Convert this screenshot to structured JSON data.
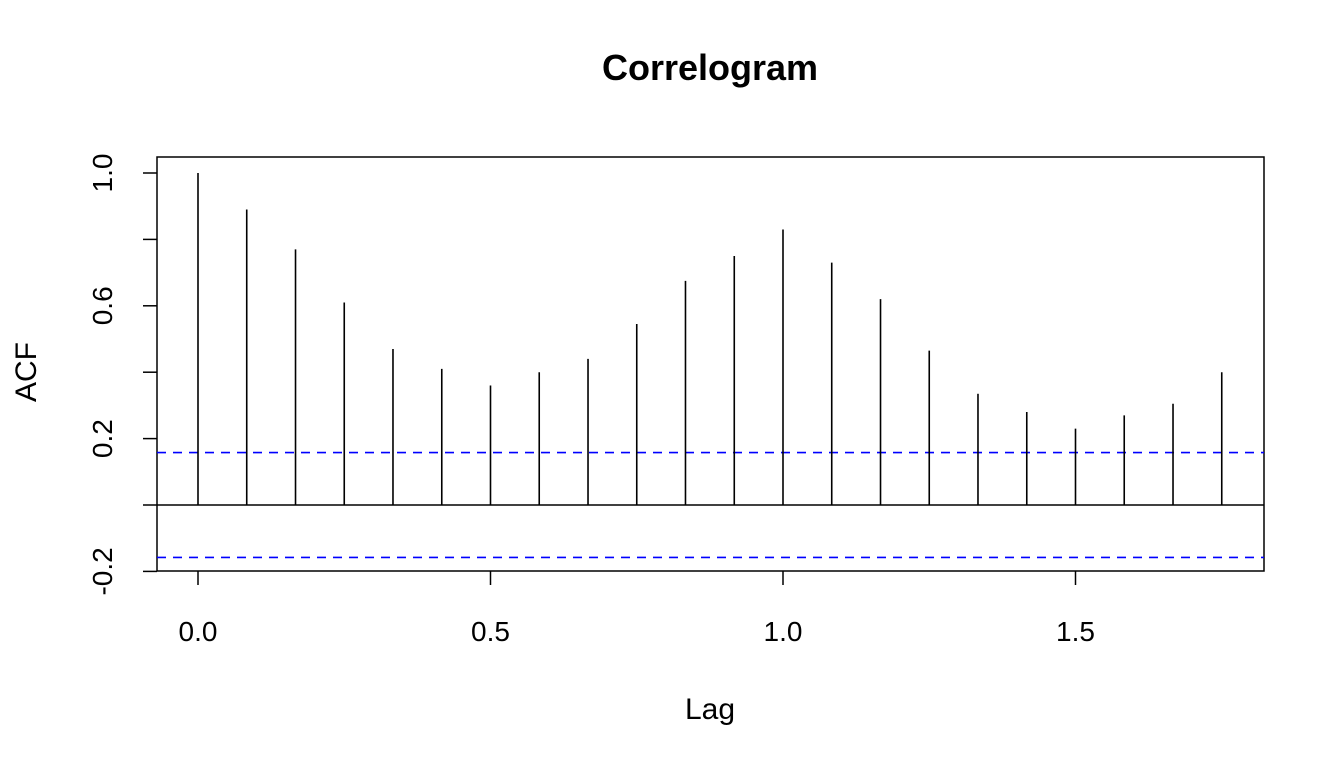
{
  "chart_data": {
    "type": "bar",
    "title": "Correlogram",
    "xlabel": "Lag",
    "ylabel": "ACF",
    "x": [
      0,
      0.0833,
      0.1667,
      0.25,
      0.3333,
      0.4167,
      0.5,
      0.5833,
      0.6667,
      0.75,
      0.8333,
      0.9167,
      1.0,
      1.0833,
      1.1667,
      1.25,
      1.3333,
      1.4167,
      1.5,
      1.5833,
      1.6667,
      1.75
    ],
    "values": [
      1.0,
      0.89,
      0.77,
      0.61,
      0.47,
      0.41,
      0.36,
      0.4,
      0.44,
      0.545,
      0.675,
      0.75,
      0.83,
      0.73,
      0.62,
      0.465,
      0.335,
      0.28,
      0.23,
      0.27,
      0.305,
      0.4
    ],
    "xlim": [
      -0.07,
      1.82
    ],
    "ylim": [
      -0.2,
      1.05
    ],
    "x_ticks": [
      0.0,
      0.5,
      1.0,
      1.5
    ],
    "x_tick_labels": [
      "0.0",
      "0.5",
      "1.0",
      "1.5"
    ],
    "y_ticks": [
      -0.2,
      0.0,
      0.2,
      0.4,
      0.6,
      0.8,
      1.0
    ],
    "y_tick_labels": [
      "-0.2",
      "",
      "0.2",
      "",
      "0.6",
      "",
      "1.0"
    ],
    "confidence_bound": 0.158,
    "confidence_color": "#0000ff",
    "bar_color": "#000000",
    "grid": false,
    "legend": "none"
  }
}
